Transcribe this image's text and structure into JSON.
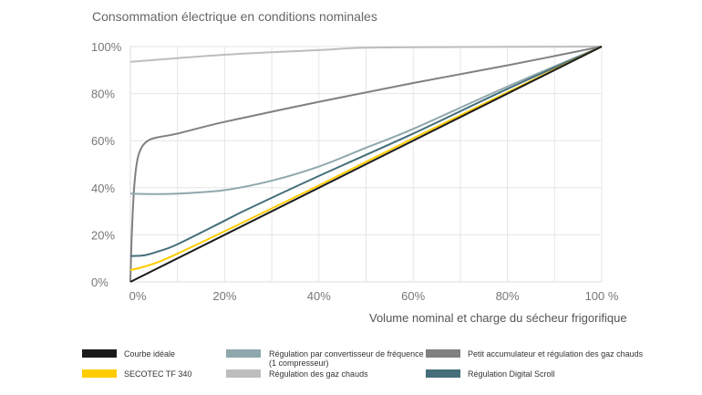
{
  "chart_data": {
    "type": "line",
    "title": "Consommation électrique en conditions nominales",
    "xlabel": "Volume nominal et charge du sécheur frigorifique",
    "ylabel": "",
    "xlim": [
      0,
      100
    ],
    "ylim": [
      0,
      100
    ],
    "x_ticks": [
      "0%",
      "20%",
      "40%",
      "60%",
      "80%",
      "100 %"
    ],
    "y_ticks": [
      "0%",
      "20%",
      "40%",
      "60%",
      "80%",
      "100%"
    ],
    "grid": true,
    "legend_position": "bottom",
    "series": [
      {
        "name": "Courbe idéale",
        "color": "#1a1a1a",
        "points": [
          [
            0,
            0
          ],
          [
            100,
            100
          ]
        ]
      },
      {
        "name": "SECOTEC TF 340",
        "color": "#ffcc00",
        "points": [
          [
            0,
            5
          ],
          [
            3,
            6.5
          ],
          [
            6,
            8.5
          ],
          [
            10,
            12
          ],
          [
            20,
            21.5
          ],
          [
            40,
            41
          ],
          [
            60,
            61
          ],
          [
            80,
            80.5
          ],
          [
            100,
            100
          ]
        ]
      },
      {
        "name": "Régulation par convertisseur de fréquence (1 compresseur)",
        "color": "#8fa8ad",
        "points": [
          [
            0,
            37.5
          ],
          [
            5,
            37.3
          ],
          [
            10,
            37.5
          ],
          [
            20,
            39
          ],
          [
            30,
            43
          ],
          [
            40,
            49
          ],
          [
            50,
            57
          ],
          [
            60,
            65
          ],
          [
            80,
            83
          ],
          [
            100,
            100
          ]
        ]
      },
      {
        "name": "Régulation des gaz chauds",
        "color": "#bdbdbd",
        "points": [
          [
            0,
            93.5
          ],
          [
            20,
            96.5
          ],
          [
            40,
            98.5
          ],
          [
            50,
            99.5
          ],
          [
            70,
            99.8
          ],
          [
            100,
            100
          ]
        ]
      },
      {
        "name": "Petit accumulateur et régulation des gaz chauds",
        "color": "#808080",
        "points": [
          [
            0,
            0
          ],
          [
            0.3,
            20
          ],
          [
            0.8,
            40
          ],
          [
            1.5,
            52
          ],
          [
            2.5,
            57.5
          ],
          [
            4,
            60.3
          ],
          [
            6,
            61.5
          ],
          [
            10,
            63
          ],
          [
            20,
            68
          ],
          [
            40,
            76.5
          ],
          [
            60,
            84.5
          ],
          [
            80,
            92
          ],
          [
            100,
            100
          ]
        ]
      },
      {
        "name": "Régulation Digital Scroll",
        "color": "#456e7a",
        "points": [
          [
            0,
            11
          ],
          [
            3,
            11.3
          ],
          [
            6,
            13
          ],
          [
            10,
            16
          ],
          [
            20,
            26
          ],
          [
            25,
            31
          ],
          [
            40,
            45
          ],
          [
            60,
            63
          ],
          [
            80,
            82
          ],
          [
            100,
            100
          ]
        ]
      }
    ]
  },
  "legend": {
    "courbe_ideale": "Courbe idéale",
    "secotec": "SECOTEC TF 340",
    "freq_line1": "Régulation par convertisseur de fréquence",
    "freq_line2": "(1 compresseur)",
    "gaz_chauds": "Régulation des gaz chauds",
    "petit_accu": "Petit accumulateur et régulation des gaz chauds",
    "digital_scroll": "Régulation Digital Scroll"
  }
}
